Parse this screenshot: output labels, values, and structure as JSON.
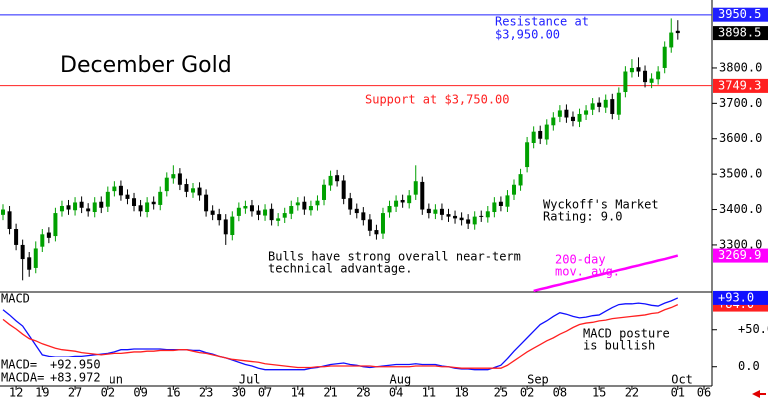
{
  "chart_data": {
    "type": "candlestick",
    "title": "December Gold",
    "xlim": [
      0,
      107
    ],
    "xticks": [
      {
        "value": 2,
        "label": "12"
      },
      {
        "value": 6,
        "label": "19"
      },
      {
        "value": 11,
        "label": "27"
      },
      {
        "value": 16,
        "label": "02"
      },
      {
        "value": 21,
        "label": "09"
      },
      {
        "value": 26,
        "label": "16"
      },
      {
        "value": 31,
        "label": "23"
      },
      {
        "value": 36,
        "label": "30"
      },
      {
        "value": 40,
        "label": "07"
      },
      {
        "value": 45,
        "label": "14"
      },
      {
        "value": 50,
        "label": "21"
      },
      {
        "value": 55,
        "label": "28"
      },
      {
        "value": 60,
        "label": "04"
      },
      {
        "value": 65,
        "label": "11"
      },
      {
        "value": 70,
        "label": "18"
      },
      {
        "value": 76,
        "label": "25"
      },
      {
        "value": 80,
        "label": "02"
      },
      {
        "value": 85,
        "label": "08"
      },
      {
        "value": 91,
        "label": "15"
      },
      {
        "value": 96,
        "label": "22"
      },
      {
        "value": 103,
        "label": "01"
      },
      {
        "value": 107,
        "label": "06"
      }
    ],
    "month_ticks": [
      {
        "value": 15,
        "label": "Jun"
      },
      {
        "value": 36,
        "label": "Jul"
      },
      {
        "value": 59,
        "label": "Aug"
      },
      {
        "value": 80,
        "label": "Sep"
      },
      {
        "value": 102,
        "label": "Oct"
      }
    ],
    "up_color": "#00a000",
    "down_color": "#000000",
    "open": [
      3385,
      3395,
      3345,
      3300,
      3265,
      3235,
      3295,
      3335,
      3325,
      3395,
      3412,
      3398,
      3422,
      3403,
      3393,
      3422,
      3408,
      3452,
      3467,
      3442,
      3432,
      3412,
      3393,
      3422,
      3413,
      3452,
      3488,
      3502,
      3472,
      3448,
      3462,
      3442,
      3397,
      3387,
      3372,
      3328,
      3382,
      3403,
      3412,
      3397,
      3383,
      3402,
      3368,
      3377,
      3388,
      3412,
      3422,
      3398,
      3412,
      3427,
      3468,
      3497,
      3482,
      3432,
      3402,
      3392,
      3372,
      3342,
      3332,
      3392,
      3408,
      3427,
      3418,
      3442,
      3478,
      3402,
      3388,
      3402,
      3387,
      3382,
      3377,
      3372,
      3358,
      3382,
      3378,
      3393,
      3422,
      3408,
      3442,
      3468,
      3520,
      3588,
      3622,
      3598,
      3638,
      3662,
      3682,
      3662,
      3648,
      3668,
      3682,
      3702,
      3688,
      3712,
      3668,
      3732,
      3788,
      3802,
      3792,
      3758,
      3768,
      3800,
      3858,
      3905
    ],
    "high": [
      3415,
      3410,
      3360,
      3315,
      3280,
      3310,
      3345,
      3350,
      3405,
      3425,
      3427,
      3435,
      3437,
      3418,
      3435,
      3437,
      3465,
      3480,
      3482,
      3457,
      3447,
      3427,
      3435,
      3437,
      3465,
      3505,
      3525,
      3517,
      3487,
      3475,
      3477,
      3457,
      3412,
      3402,
      3387,
      3395,
      3420,
      3425,
      3427,
      3412,
      3415,
      3417,
      3390,
      3405,
      3425,
      3435,
      3437,
      3425,
      3440,
      3485,
      3510,
      3512,
      3497,
      3447,
      3417,
      3407,
      3387,
      3357,
      3405,
      3425,
      3440,
      3442,
      3455,
      3525,
      3493,
      3417,
      3415,
      3417,
      3402,
      3397,
      3392,
      3387,
      3395,
      3397,
      3410,
      3435,
      3437,
      3455,
      3485,
      3515,
      3605,
      3635,
      3637,
      3655,
      3675,
      3695,
      3697,
      3677,
      3685,
      3695,
      3715,
      3717,
      3725,
      3727,
      3745,
      3805,
      3825,
      3830,
      3807,
      3785,
      3805,
      3875,
      3940,
      3935
    ],
    "low": [
      3370,
      3330,
      3285,
      3200,
      3210,
      3220,
      3280,
      3305,
      3310,
      3380,
      3385,
      3383,
      3390,
      3380,
      3378,
      3390,
      3393,
      3437,
      3425,
      3415,
      3395,
      3380,
      3378,
      3400,
      3398,
      3437,
      3473,
      3455,
      3435,
      3433,
      3425,
      3380,
      3370,
      3355,
      3300,
      3313,
      3367,
      3388,
      3380,
      3370,
      3368,
      3355,
      3353,
      3362,
      3373,
      3397,
      3385,
      3383,
      3397,
      3412,
      3453,
      3465,
      3415,
      3385,
      3375,
      3355,
      3325,
      3315,
      3317,
      3377,
      3393,
      3405,
      3403,
      3427,
      3385,
      3375,
      3373,
      3370,
      3365,
      3360,
      3355,
      3345,
      3343,
      3365,
      3363,
      3378,
      3395,
      3393,
      3427,
      3453,
      3505,
      3573,
      3585,
      3583,
      3623,
      3647,
      3645,
      3635,
      3633,
      3653,
      3667,
      3675,
      3673,
      3655,
      3653,
      3717,
      3773,
      3775,
      3745,
      3743,
      3753,
      3785,
      3843,
      3880
    ],
    "close": [
      3400,
      3345,
      3300,
      3260,
      3230,
      3290,
      3330,
      3320,
      3390,
      3410,
      3400,
      3420,
      3405,
      3395,
      3420,
      3405,
      3450,
      3465,
      3440,
      3430,
      3410,
      3395,
      3420,
      3415,
      3450,
      3490,
      3500,
      3470,
      3450,
      3460,
      3440,
      3395,
      3385,
      3370,
      3330,
      3380,
      3405,
      3410,
      3395,
      3385,
      3400,
      3370,
      3375,
      3390,
      3410,
      3420,
      3400,
      3410,
      3425,
      3470,
      3495,
      3480,
      3430,
      3400,
      3390,
      3370,
      3340,
      3330,
      3390,
      3410,
      3425,
      3420,
      3440,
      3480,
      3400,
      3390,
      3400,
      3385,
      3380,
      3375,
      3370,
      3360,
      3380,
      3380,
      3395,
      3420,
      3410,
      3440,
      3470,
      3500,
      3590,
      3620,
      3600,
      3640,
      3660,
      3680,
      3660,
      3650,
      3670,
      3680,
      3700,
      3690,
      3710,
      3670,
      3730,
      3790,
      3800,
      3790,
      3760,
      3770,
      3790,
      3860,
      3900,
      3898.5
    ],
    "ylim": [
      3167,
      3992
    ],
    "yticks": [
      {
        "value": 3300,
        "label": "3300.0"
      },
      {
        "value": 3400,
        "label": "3400.0"
      },
      {
        "value": 3500,
        "label": "3500.0"
      },
      {
        "value": 3600,
        "label": "3600.0"
      },
      {
        "value": 3700,
        "label": "3700.0"
      },
      {
        "value": 3800,
        "label": "3800.0"
      }
    ],
    "levels": [
      {
        "value": 3950,
        "color": "#2020ff",
        "label": [
          "Resistance at",
          "$3,950.00"
        ]
      },
      {
        "value": 3750,
        "color": "#ff2020",
        "label": [
          "Support at $3,750.00"
        ]
      }
    ],
    "price_tags": [
      {
        "value": 3950.5,
        "color": "#2020ff"
      },
      {
        "value": 3749.3,
        "color": "#ff2020"
      },
      {
        "value": 3269.9,
        "color": "#ff00ff"
      },
      {
        "value": 3898.5,
        "color": "#000000"
      }
    ],
    "ma": {
      "label": [
        "200-day",
        "mov. avg."
      ],
      "color": "#ff00ff",
      "x": [
        81,
        82,
        83,
        84,
        85,
        86,
        87,
        88,
        89,
        90,
        91,
        92,
        93,
        94,
        95,
        96,
        97,
        98,
        99,
        100,
        101,
        102,
        103
      ],
      "values": [
        3170,
        3175,
        3179,
        3184,
        3188,
        3193,
        3197,
        3202,
        3206,
        3211,
        3215,
        3220,
        3224,
        3229,
        3233,
        3238,
        3242,
        3247,
        3251,
        3256,
        3260,
        3265,
        3269.9
      ]
    },
    "annotations": [
      {
        "text": [
          "Wyckoff's Market",
          "Rating: 9.0"
        ]
      },
      {
        "text": [
          "Bulls have strong overall near-term",
          "technical advantage."
        ]
      }
    ],
    "indicator": {
      "title": "MACD",
      "ylim": [
        -22,
        101
      ],
      "yticks": [
        {
          "value": 50,
          "label": "+50.0"
        },
        {
          "value": 0,
          "label": "0.0"
        }
      ],
      "annotation": [
        "MACD posture",
        "is bullish"
      ],
      "series": [
        {
          "name": "MACD=",
          "color": "#1010ff",
          "readout": "+92.950",
          "values": [
            77,
            70,
            62,
            55,
            42,
            29,
            16,
            14,
            13,
            13,
            13,
            14,
            14,
            15,
            16,
            17,
            18,
            20,
            23,
            23,
            24,
            24,
            24,
            24,
            24,
            23,
            23,
            23,
            23,
            22,
            22,
            19,
            17,
            14,
            12,
            9,
            6,
            3,
            1,
            -2,
            -4,
            -4,
            -4,
            -4,
            -4,
            -4,
            -4,
            -2,
            -1,
            1,
            3,
            4,
            5,
            3,
            2,
            0,
            -1,
            0,
            1,
            2,
            3,
            3,
            3,
            4,
            3,
            3,
            3,
            1,
            0,
            -2,
            -3,
            -3,
            -4,
            -4,
            -4,
            -1,
            2,
            11,
            21,
            30,
            39,
            48,
            57,
            62,
            68,
            73,
            71,
            68,
            66,
            67,
            69,
            70,
            75,
            80,
            84,
            85,
            85,
            86,
            85,
            83,
            82,
            86,
            89,
            92.95
          ]
        },
        {
          "name": "MACDA=",
          "color": "#ff2020",
          "readout": "+83.972",
          "values": [
            64,
            57,
            51,
            44,
            38,
            35,
            31,
            28,
            25,
            23,
            22,
            21,
            19,
            18,
            17,
            16,
            17,
            18,
            18,
            19,
            20,
            20,
            21,
            21,
            22,
            22,
            22,
            23,
            23,
            21,
            19,
            18,
            16,
            14,
            12,
            10,
            9,
            8,
            7,
            6,
            4,
            3,
            2,
            1,
            0,
            -1,
            -1,
            -1,
            0,
            0,
            1,
            1,
            1,
            1,
            1,
            1,
            1,
            0,
            0,
            0,
            0,
            0,
            0,
            1,
            1,
            1,
            1,
            0,
            0,
            -1,
            -2,
            -2,
            -2,
            -2,
            -2,
            -2,
            -2,
            2,
            8,
            14,
            20,
            25,
            30,
            35,
            39,
            44,
            48,
            53,
            57,
            59,
            60,
            62,
            63,
            65,
            66,
            67,
            68,
            69,
            70,
            72,
            73,
            77,
            80,
            83.972
          ]
        }
      ],
      "tags": [
        {
          "value": 84,
          "label": "+84.0",
          "color": "#ff2020"
        },
        {
          "value": 93,
          "label": "+93.0",
          "color": "#1010ff"
        }
      ]
    }
  }
}
